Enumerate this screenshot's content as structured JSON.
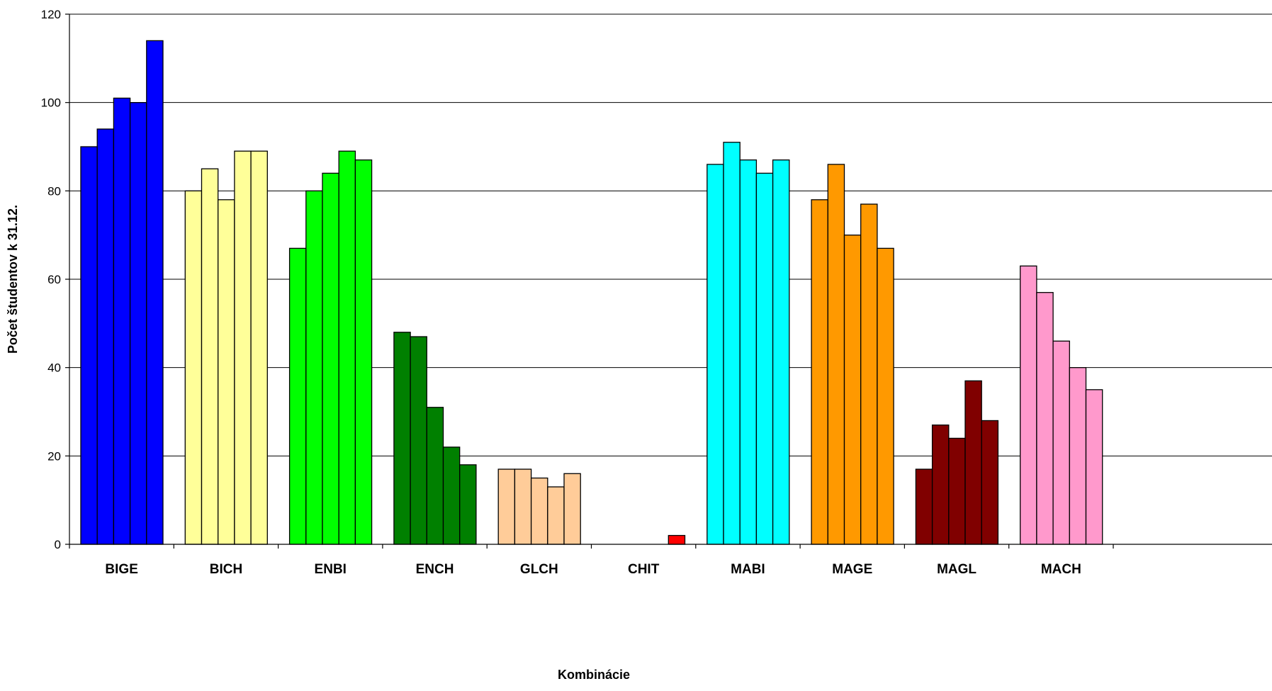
{
  "chart_data": {
    "type": "bar",
    "xlabel": "Kombinácie",
    "ylabel": "Počet študentov k 31.12.",
    "ylim": [
      0,
      120
    ],
    "yticks": [
      0,
      20,
      40,
      60,
      80,
      100,
      120
    ],
    "ytick_labels": [
      "0",
      "20",
      "40",
      "60",
      "80",
      "100",
      "120"
    ],
    "grid": true,
    "legend": "none",
    "categories": [
      "BIGE",
      "BICH",
      "ENBI",
      "ENCH",
      "GLCH",
      "CHIT",
      "MABI",
      "MAGE",
      "MAGL",
      "MACH"
    ],
    "series": [
      {
        "values": [
          90,
          80,
          67,
          48,
          17,
          0,
          86,
          78,
          17,
          63
        ]
      },
      {
        "values": [
          94,
          85,
          80,
          47,
          17,
          0,
          91,
          86,
          27,
          57
        ]
      },
      {
        "values": [
          101,
          78,
          84,
          31,
          15,
          0,
          87,
          70,
          24,
          46
        ]
      },
      {
        "values": [
          100,
          89,
          89,
          22,
          13,
          0,
          84,
          77,
          37,
          40
        ]
      },
      {
        "values": [
          114,
          89,
          87,
          18,
          16,
          2,
          87,
          67,
          28,
          35
        ]
      }
    ],
    "category_colors": [
      "#0000FF",
      "#FFFF99",
      "#00FF00",
      "#008000",
      "#FFCC99",
      "#FF0000",
      "#00FFFF",
      "#FF9900",
      "#800000",
      "#FF99CC"
    ]
  }
}
